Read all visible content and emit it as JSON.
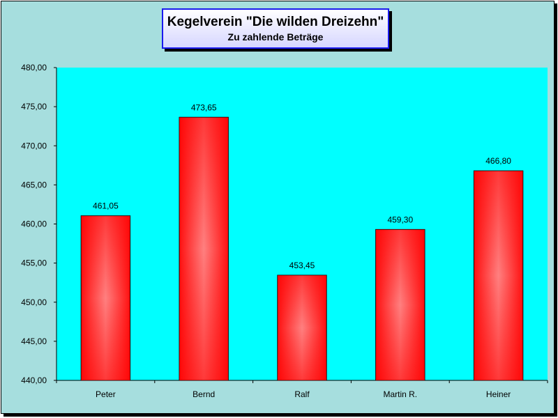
{
  "chart_data": {
    "type": "bar",
    "title": "Kegelverein \"Die wilden Dreizehn\"",
    "subtitle": "Zu zahlende Beträge",
    "categories": [
      "Peter",
      "Bernd",
      "Ralf",
      "Martin R.",
      "Heiner"
    ],
    "values": [
      461.05,
      473.65,
      453.45,
      459.3,
      466.8
    ],
    "value_labels": [
      "461,05",
      "473,65",
      "453,45",
      "459,30",
      "466,80"
    ],
    "ylim": [
      440,
      480
    ],
    "ytick_labels": [
      "440,00",
      "445,00",
      "450,00",
      "455,00",
      "460,00",
      "465,00",
      "470,00",
      "475,00",
      "480,00"
    ],
    "xlabel": "",
    "ylabel": "",
    "grid": false,
    "legend": "none",
    "colors": {
      "bar": "#ff1a1a",
      "bar_highlight": "#ff8080",
      "plot_background": "#00ffff",
      "chart_background": "#a6dede",
      "title_border": "#1a1aee"
    }
  }
}
